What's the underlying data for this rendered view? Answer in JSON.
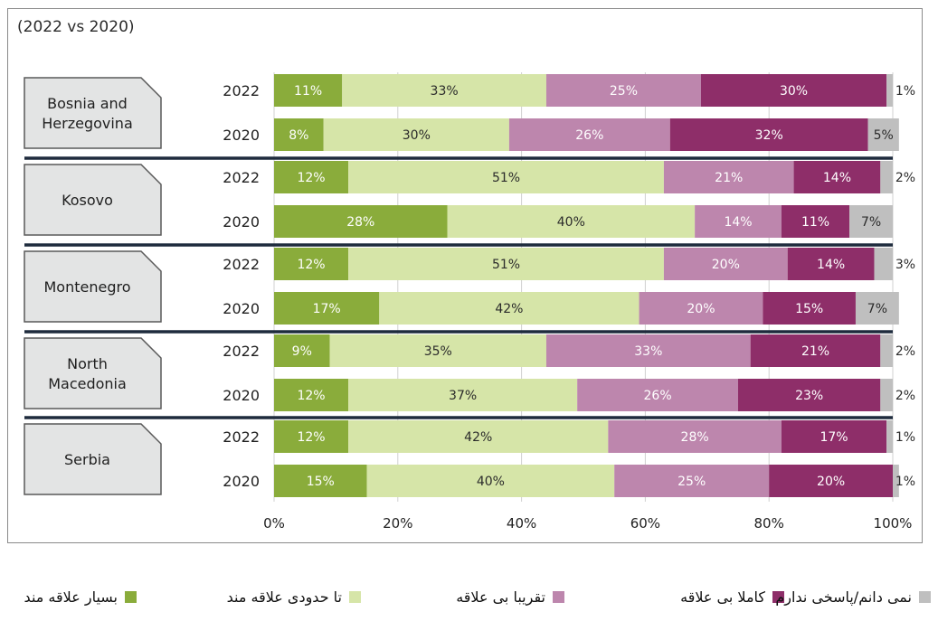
{
  "chart_data": {
    "type": "bar",
    "orientation": "horizontal",
    "stacked": true,
    "percent": true,
    "title": "(2022 vs 2020)",
    "xlim": [
      0,
      100
    ],
    "xticks": [
      "0%",
      "20%",
      "40%",
      "60%",
      "80%",
      "100%"
    ],
    "series": [
      {
        "name": "بسیار علاقه مند",
        "color": "#8aac3b",
        "text_color": "#ffffff"
      },
      {
        "name": "تا حدودی علاقه مند",
        "color": "#d6e5a8",
        "text_color": "#2b2b2b"
      },
      {
        "name": "تقریبا بی علاقه",
        "color": "#bd86ad",
        "text_color": "#ffffff"
      },
      {
        "name": "کاملا بی علاقه",
        "color": "#8e2e69",
        "text_color": "#ffffff"
      },
      {
        "name": "نمی دانم/پاسخی ندارم",
        "color": "#bfbfbf",
        "text_color": "#2b2b2b"
      }
    ],
    "groups": [
      {
        "country": [
          "Bosnia and",
          "Herzegovina"
        ],
        "rows": [
          {
            "year": "2022",
            "values": [
              11,
              33,
              25,
              30,
              1
            ],
            "labels": [
              "11%",
              "33%",
              "25%",
              "30%",
              "1%"
            ]
          },
          {
            "year": "2020",
            "values": [
              8,
              30,
              26,
              32,
              5
            ],
            "labels": [
              "8%",
              "30%",
              "26%",
              "32%",
              "5%"
            ]
          }
        ]
      },
      {
        "country": [
          "Kosovo"
        ],
        "rows": [
          {
            "year": "2022",
            "values": [
              12,
              51,
              21,
              14,
              2
            ],
            "labels": [
              "12%",
              "51%",
              "21%",
              "14%",
              "2%"
            ]
          },
          {
            "year": "2020",
            "values": [
              28,
              40,
              14,
              11,
              7
            ],
            "labels": [
              "28%",
              "40%",
              "14%",
              "11%",
              "7%"
            ]
          }
        ]
      },
      {
        "country": [
          "Montenegro"
        ],
        "rows": [
          {
            "year": "2022",
            "values": [
              12,
              51,
              20,
              14,
              3
            ],
            "labels": [
              "12%",
              "51%",
              "20%",
              "14%",
              "3%"
            ]
          },
          {
            "year": "2020",
            "values": [
              17,
              42,
              20,
              15,
              7
            ],
            "labels": [
              "17%",
              "42%",
              "20%",
              "15%",
              "7%"
            ]
          }
        ]
      },
      {
        "country": [
          "North",
          "Macedonia"
        ],
        "rows": [
          {
            "year": "2022",
            "values": [
              9,
              35,
              33,
              21,
              2
            ],
            "labels": [
              "9%",
              "35%",
              "33%",
              "21%",
              "2%"
            ]
          },
          {
            "year": "2020",
            "values": [
              12,
              37,
              26,
              23,
              2
            ],
            "labels": [
              "12%",
              "37%",
              "26%",
              "23%",
              "2%"
            ]
          }
        ]
      },
      {
        "country": [
          "Serbia"
        ],
        "rows": [
          {
            "year": "2022",
            "values": [
              12,
              42,
              28,
              17,
              1
            ],
            "labels": [
              "12%",
              "42%",
              "28%",
              "17%",
              "1%"
            ]
          },
          {
            "year": "2020",
            "values": [
              15,
              40,
              25,
              20,
              1
            ],
            "labels": [
              "15%",
              "40%",
              "25%",
              "20%",
              "1%"
            ]
          }
        ]
      }
    ]
  },
  "colors": {
    "panel_fill": "#e3e4e4",
    "panel_stroke": "#595959",
    "separator": "#1e2b3d",
    "grid": "#d0d0d0"
  }
}
